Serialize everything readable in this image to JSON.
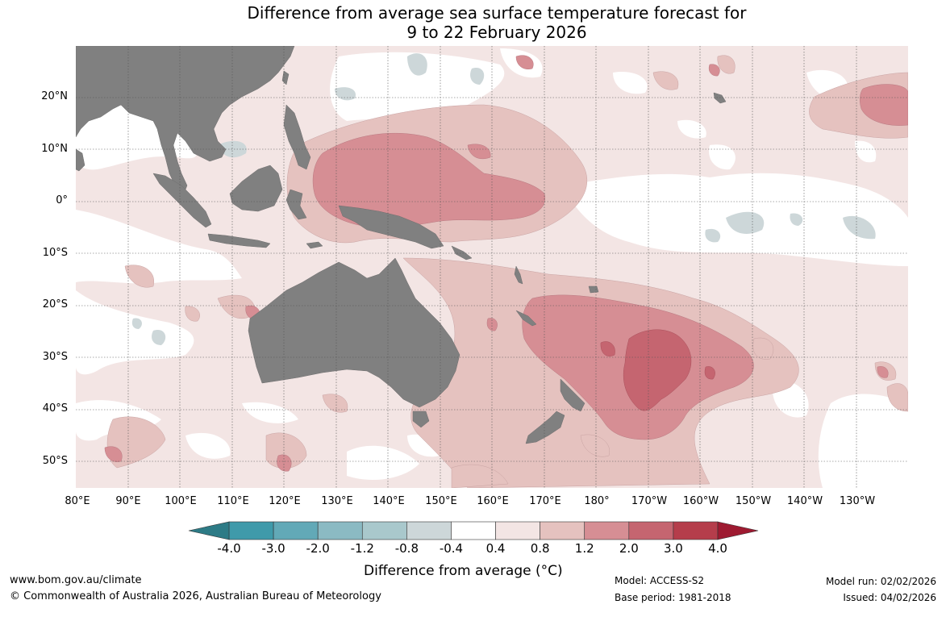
{
  "title": {
    "line1": "Difference from average sea surface temperature forecast for",
    "line2": "9 to 22 February 2026"
  },
  "map": {
    "region": "Indo-Pacific",
    "latitude_labels": [
      "20°N",
      "10°N",
      "0°",
      "10°S",
      "20°S",
      "30°S",
      "40°S",
      "50°S"
    ],
    "longitude_labels": [
      "80°E",
      "90°E",
      "100°E",
      "110°E",
      "120°E",
      "130°E",
      "140°E",
      "150°E",
      "160°E",
      "170°E",
      "180°",
      "170°W",
      "160°W",
      "150°W",
      "140°W",
      "130°W"
    ],
    "land_color": "#808080",
    "gridlines": "dotted"
  },
  "colorbar": {
    "tick_labels": [
      "-4.0",
      "-3.0",
      "-2.0",
      "-1.2",
      "-0.8",
      "-0.4",
      "0.4",
      "0.8",
      "1.2",
      "2.0",
      "3.0",
      "4.0"
    ],
    "colors": [
      "#3f9aaa",
      "#62a9b7",
      "#8bbac3",
      "#a9c8cc",
      "#cdd7d9",
      "#ffffff",
      "#f3e5e4",
      "#e5c2bf",
      "#d68e94",
      "#c56570",
      "#b53d4b"
    ],
    "under_color": "#2d7b86",
    "over_color": "#9e1a31",
    "label": "Difference from average (°C)"
  },
  "footer": {
    "website": "www.bom.gov.au/climate",
    "copyright": "© Commonwealth of Australia 2026, Australian Bureau of Meteorology",
    "model": "Model: ACCESS-S2",
    "base_period": "Base period: 1981-2018",
    "model_run": "Model run: 02/02/2026",
    "issued": "Issued: 04/02/2026"
  }
}
